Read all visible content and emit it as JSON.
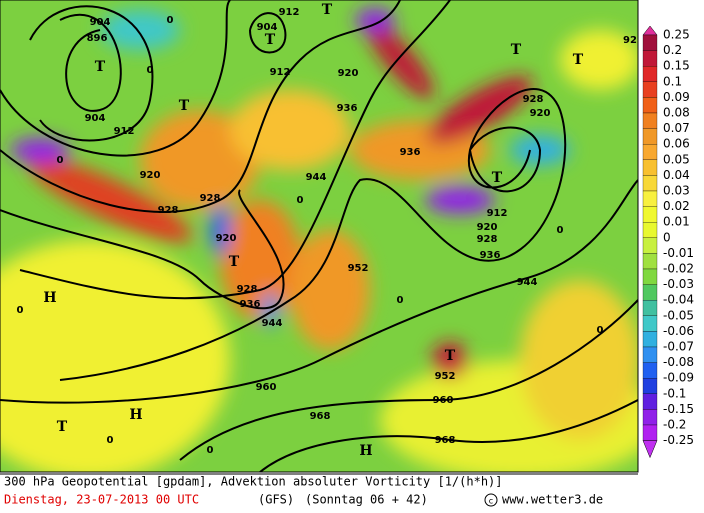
{
  "map": {
    "labels": [
      "912",
      "T",
      "904",
      "T",
      "912",
      "920",
      "936",
      "T",
      "T",
      "92",
      "904",
      "896",
      "T",
      "904",
      "912",
      "T",
      "920",
      "928",
      "928",
      "920",
      "T",
      "928",
      "936",
      "944",
      "944",
      "952",
      "936",
      "928",
      "920",
      "T",
      "912",
      "920",
      "928",
      "936",
      "944",
      "T",
      "952",
      "960",
      "960",
      "968",
      "968",
      "H",
      "H",
      "T",
      "H",
      "0",
      "0",
      "0",
      "0",
      "0",
      "0",
      "0",
      "0",
      "0",
      "0"
    ]
  },
  "legend": {
    "labels": [
      "0.25",
      "0.2",
      "0.15",
      "0.1",
      "0.09",
      "0.08",
      "0.07",
      "0.06",
      "0.05",
      "0.04",
      "0.03",
      "0.02",
      "0.01",
      "0",
      "-0.01",
      "-0.02",
      "-0.03",
      "-0.04",
      "-0.05",
      "-0.06",
      "-0.07",
      "-0.08",
      "-0.09",
      "-0.1",
      "-0.15",
      "-0.2",
      "-0.25"
    ],
    "colors": [
      "#a0103c",
      "#c01838",
      "#e02828",
      "#e84020",
      "#f06018",
      "#f08020",
      "#f09828",
      "#f8a830",
      "#f8c030",
      "#f8d838",
      "#f8f040",
      "#f0f830",
      "#e8f830",
      "#c8f040",
      "#a0e040",
      "#80d840",
      "#50c860",
      "#40c0a0",
      "#40c8c8",
      "#30b0e0",
      "#3090f0",
      "#2060f0",
      "#2040e0",
      "#6020e0",
      "#9020e8",
      "#b020f0"
    ],
    "over_color": "#e0309c",
    "under_color": "#c030f0"
  },
  "footer": {
    "line1": "300 hPa Geopotential [gpdam], Advektion absoluter Vorticity [1/(h*h)]",
    "date": "Dienstag, 23-07-2013  00 UTC",
    "model": "(GFS)",
    "run": "(Sonntag 06 + 42)",
    "credit": "www.wetter3.de"
  }
}
